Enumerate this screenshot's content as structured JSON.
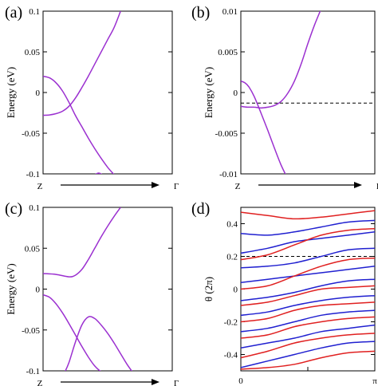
{
  "chart_data": [
    {
      "panel": "(a)",
      "type": "line",
      "ylabel": "Energy (eV)",
      "x_start": "Z",
      "x_end": "Γ",
      "xlim": [
        0,
        1
      ],
      "ylim": [
        -0.1,
        0.1
      ],
      "yticks": [
        "0.1",
        "0.05",
        "0",
        "-0.05",
        "-0.1"
      ],
      "ytick_values": [
        0.1,
        0.05,
        0,
        -0.05,
        -0.1
      ],
      "color": "#9b30d0",
      "series": [
        {
          "x": [
            0,
            0.05,
            0.1,
            0.15,
            0.2,
            0.25,
            0.3,
            0.35,
            0.4,
            0.45,
            0.5,
            0.55,
            0.6
          ],
          "y": [
            -0.028,
            -0.0275,
            -0.026,
            -0.023,
            -0.017,
            -0.007,
            0.006,
            0.02,
            0.035,
            0.05,
            0.065,
            0.08,
            0.1
          ]
        },
        {
          "x": [
            0,
            0.05,
            0.1,
            0.15,
            0.2,
            0.25,
            0.3,
            0.35,
            0.4,
            0.45,
            0.5,
            0.55,
            0.56
          ],
          "y": [
            0.02,
            0.018,
            0.012,
            0.002,
            -0.012,
            -0.028,
            -0.042,
            -0.056,
            -0.069,
            -0.081,
            -0.092,
            -0.101,
            -0.103
          ]
        },
        {
          "x": [
            0.4,
            0.43,
            0.46
          ],
          "y": [
            -0.101,
            -0.099,
            -0.101
          ]
        }
      ]
    },
    {
      "panel": "(b)",
      "type": "line",
      "ylabel": "Energy (eV)",
      "x_start": "Z",
      "x_end": "Γ",
      "xlim": [
        0,
        1
      ],
      "ylim": [
        -0.01,
        0.01
      ],
      "yticks": [
        "0.01",
        "0.005",
        "0",
        "-0.005",
        "-0.01"
      ],
      "ytick_values": [
        0.01,
        0.005,
        0,
        -0.005,
        -0.01
      ],
      "fermi_level": -0.0013,
      "color": "#9b30d0",
      "series": [
        {
          "x": [
            0,
            0.05,
            0.1,
            0.15,
            0.2,
            0.25,
            0.3,
            0.35,
            0.4,
            0.45,
            0.5,
            0.55,
            0.6
          ],
          "y": [
            -0.0017,
            -0.0018,
            -0.0018,
            -0.0019,
            -0.0018,
            -0.0016,
            -0.0011,
            -0.0001,
            0.0014,
            0.0035,
            0.006,
            0.0083,
            0.0103
          ]
        },
        {
          "x": [
            0,
            0.03,
            0.06,
            0.1,
            0.15,
            0.2,
            0.25,
            0.3,
            0.35,
            0.36
          ],
          "y": [
            0.0014,
            0.0012,
            0.0007,
            -0.0005,
            -0.0025,
            -0.0046,
            -0.0068,
            -0.0089,
            -0.0106,
            -0.011
          ]
        }
      ]
    },
    {
      "panel": "(c)",
      "type": "line",
      "ylabel": "Energy (eV)",
      "x_start": "Z",
      "x_end": "Γ",
      "xlim": [
        0,
        1
      ],
      "ylim": [
        -0.1,
        0.1
      ],
      "yticks": [
        "0.1",
        "0.05",
        "0",
        "-0.05",
        "-0.1"
      ],
      "ytick_values": [
        0.1,
        0.05,
        0,
        -0.05,
        -0.1
      ],
      "color": "#9b30d0",
      "series": [
        {
          "x": [
            0,
            0.1,
            0.2,
            0.25,
            0.3,
            0.35,
            0.4,
            0.45,
            0.5,
            0.55,
            0.6
          ],
          "y": [
            0.019,
            0.018,
            0.015,
            0.017,
            0.024,
            0.036,
            0.05,
            0.064,
            0.077,
            0.089,
            0.1
          ]
        },
        {
          "x": [
            0,
            0.05,
            0.1,
            0.15,
            0.2,
            0.25,
            0.3,
            0.35,
            0.4,
            0.45,
            0.5
          ],
          "y": [
            -0.007,
            -0.01,
            -0.018,
            -0.029,
            -0.042,
            -0.056,
            -0.07,
            -0.083,
            -0.094,
            -0.101,
            -0.103
          ]
        },
        {
          "x": [
            0.17,
            0.2,
            0.25,
            0.3,
            0.35,
            0.4,
            0.45,
            0.5,
            0.55,
            0.6,
            0.65,
            0.7
          ],
          "y": [
            -0.101,
            -0.09,
            -0.065,
            -0.044,
            -0.034,
            -0.036,
            -0.044,
            -0.054,
            -0.066,
            -0.079,
            -0.092,
            -0.103
          ]
        }
      ]
    },
    {
      "panel": "(d)",
      "type": "line",
      "ylabel": "θ (2π)",
      "xticks": [
        "0",
        "π"
      ],
      "xlim": [
        0,
        1
      ],
      "ylim": [
        -0.5,
        0.5
      ],
      "yticks": [
        "0.4",
        "0.2",
        "0",
        "-0.2",
        "-0.4"
      ],
      "ytick_values": [
        0.4,
        0.2,
        0,
        -0.2,
        -0.4
      ],
      "reference_line": 0.2,
      "colors": [
        "#e02020",
        "#2020d0"
      ],
      "series": [
        {
          "color": "#2020d0",
          "x": [
            0,
            0.2,
            0.4,
            0.6,
            0.8,
            1
          ],
          "y": [
            0.34,
            0.33,
            0.35,
            0.38,
            0.41,
            0.42
          ]
        },
        {
          "color": "#2020d0",
          "x": [
            0,
            0.2,
            0.4,
            0.6,
            0.8,
            1
          ],
          "y": [
            0.22,
            0.25,
            0.29,
            0.31,
            0.33,
            0.35
          ]
        },
        {
          "color": "#2020d0",
          "x": [
            0,
            0.2,
            0.4,
            0.6,
            0.8,
            1
          ],
          "y": [
            0.13,
            0.14,
            0.16,
            0.2,
            0.24,
            0.25
          ]
        },
        {
          "color": "#2020d0",
          "x": [
            0,
            0.2,
            0.4,
            0.6,
            0.8,
            1
          ],
          "y": [
            0.04,
            0.06,
            0.08,
            0.1,
            0.12,
            0.14
          ]
        },
        {
          "color": "#2020d0",
          "x": [
            0,
            0.2,
            0.4,
            0.6,
            0.8,
            1
          ],
          "y": [
            -0.07,
            -0.05,
            -0.02,
            0.02,
            0.05,
            0.06
          ]
        },
        {
          "color": "#2020d0",
          "x": [
            0,
            0.2,
            0.4,
            0.6,
            0.8,
            1
          ],
          "y": [
            -0.16,
            -0.14,
            -0.1,
            -0.07,
            -0.05,
            -0.04
          ]
        },
        {
          "color": "#2020d0",
          "x": [
            0,
            0.2,
            0.4,
            0.6,
            0.8,
            1
          ],
          "y": [
            -0.26,
            -0.24,
            -0.2,
            -0.16,
            -0.14,
            -0.13
          ]
        },
        {
          "color": "#2020d0",
          "x": [
            0,
            0.2,
            0.4,
            0.6,
            0.8,
            1
          ],
          "y": [
            -0.36,
            -0.33,
            -0.3,
            -0.26,
            -0.24,
            -0.22
          ]
        },
        {
          "color": "#2020d0",
          "x": [
            0,
            0.2,
            0.4,
            0.6,
            0.8,
            1
          ],
          "y": [
            -0.48,
            -0.44,
            -0.4,
            -0.36,
            -0.33,
            -0.32
          ]
        },
        {
          "color": "#e02020",
          "x": [
            0,
            0.2,
            0.4,
            0.6,
            0.8,
            1
          ],
          "y": [
            0.47,
            0.45,
            0.43,
            0.44,
            0.46,
            0.48
          ]
        },
        {
          "color": "#e02020",
          "x": [
            0,
            0.2,
            0.4,
            0.6,
            0.8,
            1
          ],
          "y": [
            0.18,
            0.21,
            0.27,
            0.33,
            0.36,
            0.37
          ]
        },
        {
          "color": "#e02020",
          "x": [
            0,
            0.2,
            0.4,
            0.6,
            0.8,
            1
          ],
          "y": [
            0.0,
            0.02,
            0.08,
            0.14,
            0.18,
            0.19
          ]
        },
        {
          "color": "#e02020",
          "x": [
            0,
            0.2,
            0.4,
            0.6,
            0.8,
            1
          ],
          "y": [
            -0.1,
            -0.08,
            -0.04,
            0.0,
            0.01,
            0.02
          ]
        },
        {
          "color": "#e02020",
          "x": [
            0,
            0.2,
            0.4,
            0.6,
            0.8,
            1
          ],
          "y": [
            -0.2,
            -0.18,
            -0.13,
            -0.1,
            -0.09,
            -0.08
          ]
        },
        {
          "color": "#e02020",
          "x": [
            0,
            0.2,
            0.4,
            0.6,
            0.8,
            1
          ],
          "y": [
            -0.3,
            -0.28,
            -0.23,
            -0.2,
            -0.18,
            -0.17
          ]
        },
        {
          "color": "#e02020",
          "x": [
            0,
            0.2,
            0.4,
            0.6,
            0.8,
            1
          ],
          "y": [
            -0.42,
            -0.38,
            -0.33,
            -0.3,
            -0.28,
            -0.27
          ]
        },
        {
          "color": "#e02020",
          "x": [
            0,
            0.2,
            0.4,
            0.6,
            0.8,
            1
          ],
          "y": [
            -0.49,
            -0.48,
            -0.46,
            -0.42,
            -0.39,
            -0.38
          ]
        }
      ]
    }
  ]
}
